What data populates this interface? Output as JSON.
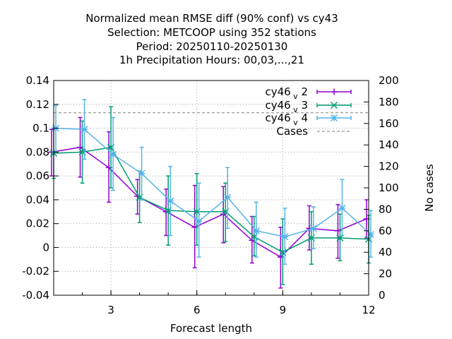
{
  "chart_data": {
    "type": "line",
    "title_lines": [
      "Normalized mean RMSE diff (90% conf) vs cy43",
      "Selection: METCOOP using   352 stations",
      "Period: 20250110-20250130",
      "1h Precipitation   Hours:  00,03,...,21"
    ],
    "xlabel": "Forecast length",
    "ylabel": "",
    "y2label": "No cases",
    "xlim": [
      1,
      12
    ],
    "ylim": [
      -0.04,
      0.14
    ],
    "y2lim": [
      0,
      200
    ],
    "xticks": [
      "3",
      "6",
      "9",
      "12"
    ],
    "yticks": [
      "-0.04",
      "-0.02",
      "0",
      "0.02",
      "0.04",
      "0.06",
      "0.08",
      "0.1",
      "0.12",
      "0.14"
    ],
    "y2ticks": [
      "0",
      "20",
      "40",
      "60",
      "80",
      "100",
      "120",
      "140",
      "160",
      "180",
      "200"
    ],
    "grid": true,
    "legend_position": "top-right",
    "series": [
      {
        "name": "cy46",
        "name_sub": "v",
        "name_suffix": "2",
        "color": "#9400d3",
        "marker": "plus",
        "x": [
          1,
          2,
          3,
          4,
          5,
          6,
          7,
          8,
          9,
          10,
          11,
          12
        ],
        "y": [
          0.08,
          0.084,
          0.067,
          0.043,
          0.03,
          0.017,
          0.028,
          0.006,
          -0.008,
          0.016,
          0.014,
          0.024
        ],
        "err_low": [
          0.06,
          0.059,
          0.038,
          0.028,
          0.01,
          -0.017,
          0.004,
          -0.013,
          -0.034,
          -0.002,
          -0.009,
          0.008
        ],
        "err_high": [
          0.099,
          0.109,
          0.097,
          0.057,
          0.049,
          0.052,
          0.051,
          0.026,
          0.017,
          0.035,
          0.036,
          0.04
        ]
      },
      {
        "name": "cy46",
        "name_sub": "v",
        "name_suffix": "3",
        "color": "#009e73",
        "marker": "cross",
        "x": [
          1,
          2,
          3,
          4,
          5,
          6,
          7,
          8,
          9,
          10,
          11,
          12
        ],
        "y": [
          0.079,
          0.08,
          0.084,
          0.042,
          0.031,
          0.03,
          0.03,
          0.009,
          -0.004,
          0.008,
          0.008,
          0.007
        ],
        "err_low": [
          0.058,
          0.054,
          0.05,
          0.021,
          0.002,
          0.002,
          0.005,
          -0.007,
          -0.031,
          -0.014,
          -0.011,
          -0.013
        ],
        "err_high": [
          0.1,
          0.106,
          0.118,
          0.064,
          0.06,
          0.062,
          0.054,
          0.026,
          0.024,
          0.03,
          0.028,
          0.027
        ]
      },
      {
        "name": "cy46",
        "name_sub": "v",
        "name_suffix": "4",
        "color": "#56b4e9",
        "marker": "star",
        "x": [
          1,
          2,
          3,
          4,
          5,
          6,
          7,
          8,
          9,
          10,
          11,
          12
        ],
        "y": [
          0.1,
          0.099,
          0.078,
          0.062,
          0.039,
          0.022,
          0.042,
          0.014,
          0.009,
          0.016,
          0.033,
          0.011
        ],
        "err_low": [
          0.081,
          0.074,
          0.048,
          0.04,
          0.01,
          -0.008,
          0.016,
          -0.008,
          -0.014,
          -0.001,
          0.01,
          -0.008
        ],
        "err_high": [
          0.119,
          0.124,
          0.109,
          0.084,
          0.068,
          0.054,
          0.067,
          0.038,
          0.033,
          0.034,
          0.057,
          0.031
        ]
      }
    ],
    "cases": {
      "name": "Cases",
      "color": "#999999",
      "style": "dashed",
      "x": [
        1,
        12
      ],
      "y": [
        170,
        170
      ]
    }
  }
}
